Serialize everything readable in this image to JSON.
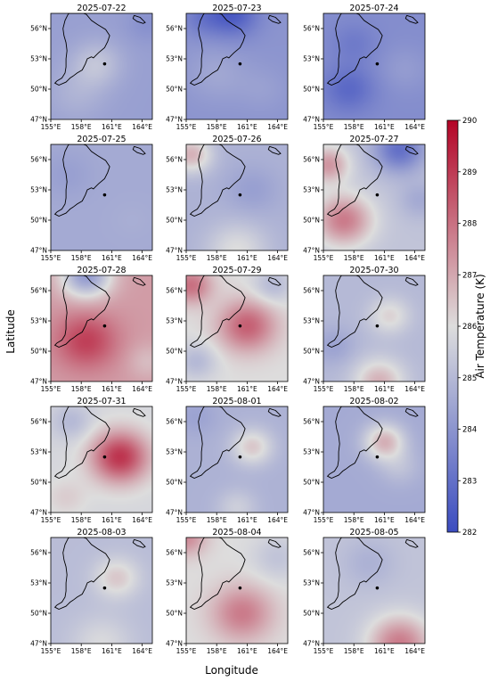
{
  "chart_data": {
    "type": "heatmap",
    "xlabel": "Longitude",
    "ylabel": "Latitude",
    "colorbar": {
      "label": "Air Temperature (K)",
      "range": [
        282,
        290
      ],
      "ticks": [
        "282",
        "283",
        "284",
        "285",
        "286",
        "287",
        "288",
        "289",
        "290"
      ],
      "colors": [
        "#3b4cc0",
        "#dddddd",
        "#b40426"
      ]
    },
    "x_ticks": [
      "155°E",
      "158°E",
      "161°E",
      "164°E"
    ],
    "y_ticks": [
      "56°N",
      "53°N",
      "50°N",
      "47°N"
    ],
    "lon_range": [
      155,
      165
    ],
    "lat_range": [
      47,
      57.5
    ],
    "marker": {
      "lon": 160.3,
      "lat": 52.5
    },
    "coastline": [
      [
        155.6,
        50.8
      ],
      [
        156.1,
        51.1
      ],
      [
        156.4,
        51.6
      ],
      [
        156.5,
        52.2
      ],
      [
        156.5,
        53.0
      ],
      [
        156.6,
        53.8
      ],
      [
        156.5,
        54.6
      ],
      [
        156.3,
        55.3
      ],
      [
        156.2,
        56.0
      ],
      [
        156.4,
        56.8
      ],
      [
        156.7,
        57.4
      ],
      [
        156.8,
        57.5
      ],
      [
        157.2,
        57.5
      ],
      [
        157.7,
        57.5
      ],
      [
        158.2,
        57.5
      ],
      [
        158.5,
        57.4
      ],
      [
        159.0,
        56.8
      ],
      [
        159.6,
        56.4
      ],
      [
        160.4,
        55.9
      ],
      [
        160.8,
        55.3
      ],
      [
        160.6,
        54.7
      ],
      [
        160.3,
        54.1
      ],
      [
        159.7,
        53.6
      ],
      [
        159.4,
        53.3
      ],
      [
        159.2,
        53.1
      ],
      [
        159.0,
        53.2
      ],
      [
        158.6,
        53.0
      ],
      [
        158.4,
        52.5
      ],
      [
        158.1,
        51.9
      ],
      [
        157.6,
        51.6
      ],
      [
        157.2,
        51.3
      ],
      [
        156.9,
        51.1
      ],
      [
        156.7,
        50.9
      ],
      [
        156.5,
        50.7
      ],
      [
        155.8,
        50.4
      ],
      [
        155.4,
        50.6
      ],
      [
        155.6,
        50.8
      ]
    ],
    "island": [
      [
        163.2,
        57.3
      ],
      [
        163.8,
        57.1
      ],
      [
        164.3,
        56.6
      ],
      [
        164.1,
        56.5
      ],
      [
        163.5,
        56.7
      ],
      [
        163.1,
        57.0
      ],
      [
        163.2,
        57.3
      ]
    ],
    "panels": [
      {
        "title": "2025-07-22",
        "base": 284.3,
        "blobs": [
          [
            159.5,
            52.5,
            2.5,
            1.0
          ],
          [
            157.5,
            49.5,
            3.0,
            0.5
          ],
          [
            164.5,
            56.5,
            2.0,
            -0.4
          ]
        ]
      },
      {
        "title": "2025-07-23",
        "base": 284.0,
        "blobs": [
          [
            159.5,
            57.5,
            2.5,
            -1.6
          ],
          [
            156.5,
            57.0,
            2.0,
            -0.6
          ],
          [
            158.0,
            51.5,
            3.0,
            0.5
          ],
          [
            162.5,
            50.0,
            2.5,
            0.3
          ]
        ]
      },
      {
        "title": "2025-07-24",
        "base": 283.8,
        "blobs": [
          [
            157.5,
            50.0,
            2.5,
            -1.0
          ],
          [
            158.0,
            54.5,
            2.2,
            -0.5
          ],
          [
            163.0,
            52.0,
            2.5,
            0.4
          ]
        ]
      },
      {
        "title": "2025-07-25",
        "base": 284.6,
        "blobs": [
          [
            156.5,
            54.5,
            2.5,
            -0.3
          ],
          [
            163.0,
            50.0,
            2.0,
            0.1
          ]
        ]
      },
      {
        "title": "2025-07-26",
        "base": 284.8,
        "blobs": [
          [
            155.5,
            56.5,
            2.0,
            2.0
          ],
          [
            160.0,
            47.0,
            3.0,
            1.2
          ],
          [
            161.5,
            53.0,
            2.5,
            -0.5
          ]
        ]
      },
      {
        "title": "2025-07-27",
        "base": 285.3,
        "blobs": [
          [
            162.5,
            57.0,
            2.5,
            -2.3
          ],
          [
            157.0,
            50.0,
            2.8,
            2.5
          ],
          [
            155.5,
            55.5,
            2.0,
            2.0
          ],
          [
            164.5,
            52.0,
            2.0,
            -0.7
          ]
        ]
      },
      {
        "title": "2025-07-28",
        "base": 287.2,
        "blobs": [
          [
            158.5,
            51.0,
            3.0,
            1.7
          ],
          [
            158.5,
            57.5,
            2.5,
            -3.0
          ],
          [
            164.5,
            49.0,
            2.0,
            -0.6
          ]
        ]
      },
      {
        "title": "2025-07-29",
        "base": 286.0,
        "blobs": [
          [
            161.0,
            52.5,
            2.8,
            2.3
          ],
          [
            155.5,
            56.5,
            2.0,
            2.0
          ],
          [
            156.0,
            49.0,
            2.0,
            -1.0
          ],
          [
            163.5,
            56.5,
            2.0,
            -1.0
          ]
        ]
      },
      {
        "title": "2025-07-30",
        "base": 285.0,
        "blobs": [
          [
            161.5,
            53.5,
            2.0,
            1.2
          ],
          [
            160.5,
            47.0,
            2.5,
            1.8
          ],
          [
            156.0,
            50.5,
            2.0,
            -0.6
          ]
        ]
      },
      {
        "title": "2025-07-31",
        "base": 285.8,
        "blobs": [
          [
            161.8,
            52.5,
            2.8,
            3.3
          ],
          [
            157.0,
            56.0,
            2.0,
            -0.8
          ],
          [
            156.5,
            48.5,
            2.0,
            0.5
          ]
        ]
      },
      {
        "title": "2025-08-01",
        "base": 284.8,
        "blobs": [
          [
            161.5,
            53.5,
            2.0,
            1.6
          ],
          [
            156.0,
            56.5,
            2.0,
            -0.4
          ],
          [
            160.0,
            47.5,
            2.0,
            0.8
          ]
        ]
      },
      {
        "title": "2025-08-02",
        "base": 284.6,
        "blobs": [
          [
            161.0,
            54.0,
            2.0,
            2.2
          ],
          [
            162.5,
            51.5,
            2.0,
            0.6
          ]
        ]
      },
      {
        "title": "2025-08-03",
        "base": 285.1,
        "blobs": [
          [
            161.5,
            53.5,
            2.2,
            1.3
          ],
          [
            160.0,
            47.0,
            3.0,
            0.8
          ]
        ]
      },
      {
        "title": "2025-08-04",
        "base": 286.0,
        "blobs": [
          [
            160.5,
            50.0,
            3.0,
            1.8
          ],
          [
            155.0,
            57.5,
            2.0,
            1.5
          ],
          [
            164.0,
            55.5,
            2.5,
            -0.7
          ]
        ]
      },
      {
        "title": "2025-08-05",
        "base": 285.3,
        "blobs": [
          [
            162.5,
            47.0,
            3.0,
            2.5
          ],
          [
            159.5,
            55.0,
            2.5,
            -0.5
          ]
        ]
      }
    ]
  }
}
